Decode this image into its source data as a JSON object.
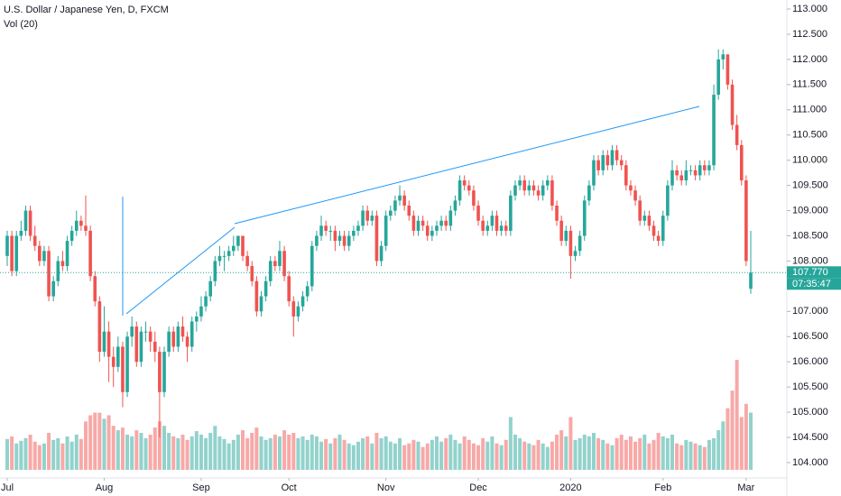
{
  "chart_data": {
    "type": "candlestick",
    "title": "U.S. Dollar / Japanese Yen, D, FXCM",
    "volume_label": "Vol (20)",
    "up_color": "#26a69a",
    "down_color": "#ef5350",
    "ylim": [
      104,
      113
    ],
    "yticks": [
      {
        "value": 104,
        "label": "104.000"
      },
      {
        "value": 104.5,
        "label": "104.500"
      },
      {
        "value": 105,
        "label": "105.000"
      },
      {
        "value": 105.5,
        "label": "105.500"
      },
      {
        "value": 106,
        "label": "106.000"
      },
      {
        "value": 106.5,
        "label": "106.500"
      },
      {
        "value": 107,
        "label": "107.000"
      },
      {
        "value": 108,
        "label": "108.000"
      },
      {
        "value": 108.5,
        "label": "108.500"
      },
      {
        "value": 109,
        "label": "109.000"
      },
      {
        "value": 109.5,
        "label": "109.500"
      },
      {
        "value": 110,
        "label": "110.000"
      },
      {
        "value": 110.5,
        "label": "110.500"
      },
      {
        "value": 111,
        "label": "111.000"
      },
      {
        "value": 111.5,
        "label": "111.500"
      },
      {
        "value": 112,
        "label": "112.000"
      },
      {
        "value": 112.5,
        "label": "112.500"
      },
      {
        "value": 113,
        "label": "113.000"
      }
    ],
    "xticks": [
      {
        "value": 0,
        "label": "Jul"
      },
      {
        "value": 21,
        "label": "Aug"
      },
      {
        "value": 42,
        "label": "Sep"
      },
      {
        "value": 61,
        "label": "Oct"
      },
      {
        "value": 82,
        "label": "Nov"
      },
      {
        "value": 102,
        "label": "Dec"
      },
      {
        "value": 122,
        "label": "2020"
      },
      {
        "value": 142,
        "label": "Feb"
      },
      {
        "value": 160,
        "label": "Mar"
      }
    ],
    "last_price": {
      "value": 107.77,
      "label": "107.770"
    },
    "countdown": "07:35:47",
    "ohlc": [
      [
        108.1,
        108.6,
        107.9,
        108.5
      ],
      [
        108.5,
        108.6,
        107.7,
        107.8
      ],
      [
        107.8,
        108.6,
        107.7,
        108.5
      ],
      [
        108.5,
        108.8,
        108.4,
        108.6
      ],
      [
        108.6,
        109.1,
        108.5,
        109.0
      ],
      [
        109.0,
        109.1,
        108.4,
        108.5
      ],
      [
        108.5,
        108.7,
        108.2,
        108.3
      ],
      [
        108.3,
        108.4,
        107.9,
        108.0
      ],
      [
        108.0,
        108.3,
        107.9,
        108.2
      ],
      [
        108.2,
        108.3,
        107.2,
        107.3
      ],
      [
        107.3,
        107.7,
        107.2,
        107.6
      ],
      [
        107.6,
        108.1,
        107.5,
        108.0
      ],
      [
        108.0,
        108.2,
        107.8,
        107.9
      ],
      [
        107.9,
        108.5,
        107.8,
        108.4
      ],
      [
        108.4,
        108.7,
        108.3,
        108.6
      ],
      [
        108.6,
        109.0,
        108.5,
        108.8
      ],
      [
        108.8,
        108.9,
        108.6,
        108.7
      ],
      [
        108.7,
        109.3,
        108.5,
        108.6
      ],
      [
        108.6,
        108.7,
        107.6,
        107.7
      ],
      [
        107.7,
        107.8,
        107.1,
        107.2
      ],
      [
        107.2,
        107.3,
        106.0,
        106.2
      ],
      [
        106.2,
        107.1,
        106.1,
        106.6
      ],
      [
        106.6,
        106.8,
        105.6,
        106.1
      ],
      [
        106.1,
        106.3,
        105.5,
        105.9
      ],
      [
        105.9,
        106.5,
        105.8,
        106.3
      ],
      [
        106.3,
        106.4,
        105.1,
        105.4
      ],
      [
        105.4,
        106.6,
        105.3,
        106.5
      ],
      [
        106.5,
        106.9,
        106.3,
        106.7
      ],
      [
        106.7,
        106.8,
        105.9,
        106.0
      ],
      [
        106.0,
        106.7,
        105.9,
        106.6
      ],
      [
        106.6,
        106.8,
        106.4,
        106.6
      ],
      [
        106.6,
        106.7,
        106.2,
        106.4
      ],
      [
        106.4,
        106.6,
        106.0,
        106.2
      ],
      [
        106.2,
        106.3,
        104.5,
        105.4
      ],
      [
        105.4,
        106.3,
        105.3,
        106.2
      ],
      [
        106.2,
        106.7,
        106.1,
        106.6
      ],
      [
        106.6,
        106.7,
        106.2,
        106.3
      ],
      [
        106.3,
        106.8,
        106.2,
        106.7
      ],
      [
        106.7,
        106.9,
        106.4,
        106.5
      ],
      [
        106.5,
        106.6,
        106.0,
        106.3
      ],
      [
        106.3,
        106.9,
        106.2,
        106.8
      ],
      [
        106.8,
        107.0,
        106.6,
        106.9
      ],
      [
        106.9,
        107.3,
        106.8,
        107.1
      ],
      [
        107.1,
        107.4,
        107.0,
        107.3
      ],
      [
        107.3,
        107.7,
        107.2,
        107.6
      ],
      [
        107.6,
        108.1,
        107.5,
        108.0
      ],
      [
        108.0,
        108.3,
        107.9,
        108.1
      ],
      [
        108.1,
        108.2,
        107.8,
        108.1
      ],
      [
        108.1,
        108.3,
        108.0,
        108.2
      ],
      [
        108.2,
        108.5,
        108.1,
        108.3
      ],
      [
        108.3,
        108.5,
        108.2,
        108.5
      ],
      [
        108.5,
        108.5,
        108.0,
        108.1
      ],
      [
        108.1,
        108.2,
        107.8,
        107.9
      ],
      [
        107.9,
        108.0,
        107.5,
        107.6
      ],
      [
        107.6,
        107.7,
        106.9,
        107.0
      ],
      [
        107.0,
        107.4,
        106.9,
        107.3
      ],
      [
        107.3,
        107.7,
        107.2,
        107.6
      ],
      [
        107.6,
        108.1,
        107.5,
        108.0
      ],
      [
        108.0,
        108.1,
        107.8,
        107.9
      ],
      [
        107.9,
        108.4,
        107.8,
        108.2
      ],
      [
        108.2,
        108.3,
        107.6,
        107.7
      ],
      [
        107.7,
        107.8,
        107.1,
        107.2
      ],
      [
        107.2,
        107.3,
        106.5,
        106.9
      ],
      [
        106.9,
        107.2,
        106.8,
        107.1
      ],
      [
        107.1,
        107.4,
        107.0,
        107.3
      ],
      [
        107.3,
        107.6,
        107.2,
        107.5
      ],
      [
        107.5,
        108.4,
        107.4,
        108.3
      ],
      [
        108.3,
        108.6,
        108.2,
        108.5
      ],
      [
        108.5,
        108.9,
        108.4,
        108.7
      ],
      [
        108.7,
        108.8,
        108.5,
        108.6
      ],
      [
        108.6,
        108.7,
        108.4,
        108.6
      ],
      [
        108.6,
        108.7,
        108.2,
        108.4
      ],
      [
        108.4,
        108.6,
        108.3,
        108.5
      ],
      [
        108.5,
        108.6,
        108.2,
        108.3
      ],
      [
        108.3,
        108.6,
        108.2,
        108.5
      ],
      [
        108.5,
        108.7,
        108.4,
        108.6
      ],
      [
        108.6,
        108.8,
        108.5,
        108.7
      ],
      [
        108.7,
        109.1,
        108.6,
        109.0
      ],
      [
        109.0,
        109.1,
        108.7,
        108.8
      ],
      [
        108.8,
        109.0,
        108.7,
        108.9
      ],
      [
        108.9,
        109.0,
        107.9,
        108.0
      ],
      [
        108.0,
        108.4,
        107.9,
        108.3
      ],
      [
        108.3,
        109.0,
        108.2,
        108.9
      ],
      [
        108.9,
        109.1,
        108.8,
        109.0
      ],
      [
        109.0,
        109.3,
        108.9,
        109.2
      ],
      [
        109.2,
        109.5,
        109.1,
        109.3
      ],
      [
        109.3,
        109.4,
        109.0,
        109.1
      ],
      [
        109.1,
        109.2,
        108.8,
        108.9
      ],
      [
        108.9,
        109.0,
        108.5,
        108.6
      ],
      [
        108.6,
        108.9,
        108.5,
        108.8
      ],
      [
        108.8,
        108.9,
        108.6,
        108.7
      ],
      [
        108.7,
        108.8,
        108.4,
        108.5
      ],
      [
        108.5,
        108.7,
        108.4,
        108.6
      ],
      [
        108.6,
        108.8,
        108.5,
        108.7
      ],
      [
        108.7,
        108.9,
        108.6,
        108.8
      ],
      [
        108.8,
        108.9,
        108.6,
        108.7
      ],
      [
        108.7,
        109.1,
        108.6,
        109.0
      ],
      [
        109.0,
        109.3,
        108.9,
        109.2
      ],
      [
        109.2,
        109.7,
        109.1,
        109.6
      ],
      [
        109.6,
        109.7,
        109.4,
        109.5
      ],
      [
        109.5,
        109.6,
        109.3,
        109.4
      ],
      [
        109.4,
        109.5,
        109.0,
        109.1
      ],
      [
        109.1,
        109.2,
        108.7,
        108.8
      ],
      [
        108.8,
        108.9,
        108.5,
        108.6
      ],
      [
        108.6,
        108.8,
        108.5,
        108.7
      ],
      [
        108.7,
        109.0,
        108.6,
        108.9
      ],
      [
        108.9,
        109.0,
        108.5,
        108.6
      ],
      [
        108.6,
        108.8,
        108.5,
        108.7
      ],
      [
        108.7,
        108.8,
        108.5,
        108.6
      ],
      [
        108.6,
        109.4,
        108.5,
        109.3
      ],
      [
        109.3,
        109.6,
        109.2,
        109.5
      ],
      [
        109.5,
        109.7,
        109.4,
        109.6
      ],
      [
        109.6,
        109.7,
        109.3,
        109.4
      ],
      [
        109.4,
        109.6,
        109.3,
        109.5
      ],
      [
        109.5,
        109.6,
        109.3,
        109.4
      ],
      [
        109.4,
        109.5,
        109.2,
        109.3
      ],
      [
        109.3,
        109.6,
        109.2,
        109.5
      ],
      [
        109.5,
        109.7,
        109.4,
        109.6
      ],
      [
        109.6,
        109.7,
        109.0,
        109.1
      ],
      [
        109.1,
        109.2,
        108.7,
        108.8
      ],
      [
        108.8,
        108.9,
        108.3,
        108.4
      ],
      [
        108.4,
        108.7,
        108.3,
        108.6
      ],
      [
        108.6,
        108.7,
        107.65,
        108.1
      ],
      [
        108.1,
        108.3,
        108.0,
        108.2
      ],
      [
        108.2,
        108.6,
        108.1,
        108.5
      ],
      [
        108.5,
        109.3,
        108.4,
        109.2
      ],
      [
        109.2,
        109.6,
        109.1,
        109.5
      ],
      [
        109.5,
        110.1,
        109.4,
        110.0
      ],
      [
        110.0,
        110.1,
        109.7,
        109.8
      ],
      [
        109.8,
        110.2,
        109.7,
        110.1
      ],
      [
        110.1,
        110.2,
        109.8,
        109.9
      ],
      [
        109.9,
        110.3,
        109.8,
        110.2
      ],
      [
        110.2,
        110.3,
        109.9,
        110.0
      ],
      [
        110.0,
        110.1,
        109.8,
        109.9
      ],
      [
        109.9,
        110.0,
        109.4,
        109.5
      ],
      [
        109.5,
        109.6,
        109.3,
        109.4
      ],
      [
        109.4,
        109.5,
        109.1,
        109.2
      ],
      [
        109.2,
        109.3,
        108.7,
        108.8
      ],
      [
        108.8,
        109.0,
        108.7,
        108.9
      ],
      [
        108.9,
        109.0,
        108.6,
        108.7
      ],
      [
        108.7,
        108.8,
        108.4,
        108.5
      ],
      [
        108.5,
        108.6,
        108.3,
        108.4
      ],
      [
        108.4,
        109.0,
        108.3,
        108.9
      ],
      [
        108.9,
        109.6,
        108.8,
        109.5
      ],
      [
        109.5,
        110.0,
        109.4,
        109.8
      ],
      [
        109.8,
        109.9,
        109.6,
        109.7
      ],
      [
        109.7,
        109.8,
        109.5,
        109.6
      ],
      [
        109.6,
        110.0,
        109.5,
        109.8
      ],
      [
        109.8,
        109.9,
        109.7,
        109.8
      ],
      [
        109.8,
        109.9,
        109.6,
        109.7
      ],
      [
        109.7,
        110.0,
        109.6,
        109.9
      ],
      [
        109.9,
        110.0,
        109.7,
        109.8
      ],
      [
        109.8,
        110.0,
        109.7,
        109.9
      ],
      [
        109.9,
        111.5,
        109.8,
        111.3
      ],
      [
        111.3,
        112.2,
        111.2,
        112.0
      ],
      [
        112.0,
        112.2,
        111.8,
        112.1
      ],
      [
        112.1,
        112.1,
        111.4,
        111.5
      ],
      [
        111.5,
        111.6,
        110.6,
        110.7
      ],
      [
        110.7,
        110.9,
        110.2,
        110.3
      ],
      [
        110.3,
        110.4,
        109.5,
        109.6
      ],
      [
        109.6,
        109.7,
        107.9,
        108.0
      ],
      [
        107.45,
        108.6,
        107.35,
        107.77
      ]
    ],
    "volume": [
      35,
      38,
      30,
      33,
      36,
      40,
      32,
      28,
      30,
      42,
      34,
      36,
      30,
      38,
      32,
      40,
      35,
      55,
      62,
      65,
      65,
      58,
      62,
      50,
      45,
      48,
      40,
      38,
      45,
      42,
      36,
      40,
      48,
      55,
      50,
      42,
      38,
      36,
      40,
      34,
      38,
      44,
      40,
      36,
      42,
      50,
      38,
      35,
      30,
      34,
      40,
      45,
      36,
      42,
      48,
      38,
      34,
      36,
      40,
      38,
      45,
      40,
      42,
      36,
      38,
      34,
      40,
      38,
      32,
      35,
      30,
      36,
      40,
      34,
      30,
      28,
      32,
      36,
      38,
      30,
      42,
      36,
      38,
      32,
      30,
      36,
      28,
      30,
      34,
      32,
      26,
      30,
      34,
      38,
      32,
      36,
      40,
      34,
      30,
      38,
      34,
      30,
      28,
      36,
      32,
      38,
      30,
      28,
      34,
      60,
      40,
      36,
      32,
      30,
      28,
      34,
      30,
      26,
      32,
      40,
      45,
      38,
      60,
      34,
      36,
      40,
      38,
      42,
      36,
      34,
      30,
      28,
      36,
      40,
      34,
      38,
      32,
      36,
      40,
      30,
      34,
      42,
      38,
      36,
      40,
      30,
      28,
      34,
      32,
      30,
      28,
      26,
      34,
      36,
      45,
      55,
      70,
      90,
      125,
      60,
      75,
      65
    ]
  }
}
